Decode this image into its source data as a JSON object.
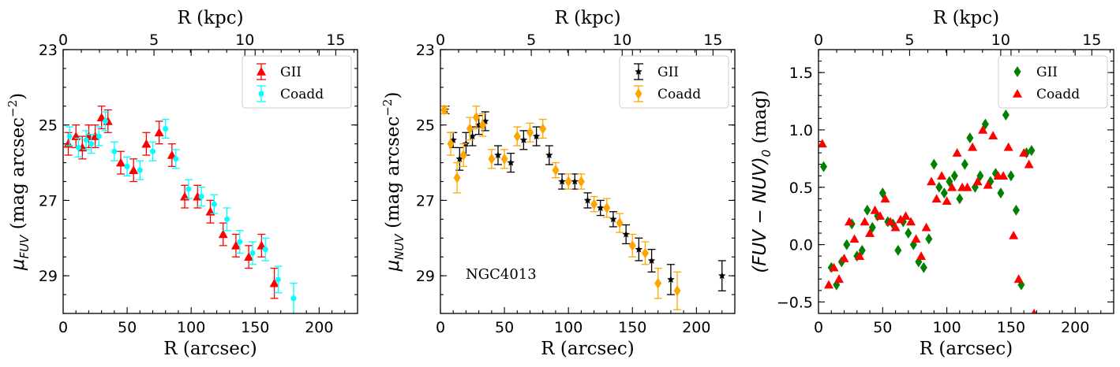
{
  "chart_data": [
    {
      "type": "scatter",
      "panel": "fuv",
      "ylabel_main": "μ",
      "ylabel_sub": "FUV",
      "ylabel_tail": " (mag arcsec",
      "ylabel_sup": "−2",
      "ylabel_close": ")",
      "xlabel": "R (arcsec)",
      "x2label": "R (kpc)",
      "xlim": [
        0,
        230
      ],
      "ylim": [
        30,
        23
      ],
      "x2lim": [
        0,
        16.2
      ],
      "xticks": [
        0,
        50,
        100,
        150,
        200
      ],
      "xtick_labels": [
        "0",
        "50",
        "100",
        "150",
        "200"
      ],
      "x2ticks": [
        0,
        5,
        10,
        15
      ],
      "x2tick_labels": [
        "0",
        "5",
        "10",
        "15"
      ],
      "yticks": [
        23,
        25,
        27,
        29
      ],
      "ytick_labels": [
        "23",
        "25",
        "27",
        "29"
      ],
      "legend": {
        "position": "top-right",
        "entries": [
          "GII",
          "Coadd"
        ]
      },
      "annotation": "",
      "series": [
        {
          "name": "GII",
          "color": "#ff0000",
          "marker": "triangle",
          "errorbars": true,
          "x": [
            4,
            10,
            15,
            20,
            25,
            30,
            35,
            45,
            55,
            65,
            75,
            85,
            95,
            105,
            115,
            125,
            135,
            145,
            155,
            165
          ],
          "y": [
            25.5,
            25.3,
            25.6,
            25.3,
            25.3,
            24.8,
            24.9,
            26.0,
            26.2,
            25.5,
            25.2,
            25.8,
            26.9,
            26.9,
            27.3,
            27.9,
            28.2,
            28.5,
            28.2,
            29.2
          ],
          "err": [
            0.3,
            0.3,
            0.3,
            0.3,
            0.3,
            0.3,
            0.3,
            0.3,
            0.3,
            0.3,
            0.3,
            0.3,
            0.3,
            0.3,
            0.3,
            0.3,
            0.3,
            0.3,
            0.3,
            0.4
          ]
        },
        {
          "name": "Coadd",
          "color": "#00ffff",
          "marker": "circle",
          "errorbars": true,
          "x": [
            5,
            12,
            18,
            22,
            28,
            33,
            40,
            50,
            60,
            70,
            80,
            88,
            98,
            108,
            118,
            128,
            138,
            148,
            158,
            168,
            180
          ],
          "y": [
            25.3,
            25.6,
            25.4,
            25.5,
            25.3,
            24.9,
            25.7,
            26.1,
            26.2,
            25.7,
            25.1,
            25.9,
            26.7,
            26.9,
            27.1,
            27.5,
            28.1,
            28.4,
            28.3,
            29.1,
            29.6
          ],
          "err": [
            0.25,
            0.25,
            0.25,
            0.25,
            0.25,
            0.25,
            0.25,
            0.25,
            0.25,
            0.25,
            0.25,
            0.25,
            0.25,
            0.25,
            0.25,
            0.3,
            0.3,
            0.3,
            0.3,
            0.35,
            0.4
          ]
        }
      ]
    },
    {
      "type": "scatter",
      "panel": "nuv",
      "ylabel_main": "μ",
      "ylabel_sub": "NUV",
      "ylabel_tail": " (mag arcsec",
      "ylabel_sup": "−2",
      "ylabel_close": ")",
      "xlabel": "R (arcsec)",
      "x2label": "R (kpc)",
      "xlim": [
        0,
        230
      ],
      "ylim": [
        30,
        23
      ],
      "x2lim": [
        0,
        16.2
      ],
      "xticks": [
        0,
        50,
        100,
        150,
        200
      ],
      "xtick_labels": [
        "0",
        "50",
        "100",
        "150",
        "200"
      ],
      "x2ticks": [
        0,
        5,
        10,
        15
      ],
      "x2tick_labels": [
        "0",
        "5",
        "10",
        "15"
      ],
      "yticks": [
        23,
        25,
        27,
        29
      ],
      "ytick_labels": [
        "23",
        "25",
        "27",
        "29"
      ],
      "legend": {
        "position": "top-right",
        "entries": [
          "GII",
          "Coadd"
        ]
      },
      "annotation": "NGC4013",
      "series": [
        {
          "name": "GII",
          "color": "#000000",
          "marker": "star",
          "errorbars": true,
          "x": [
            4,
            10,
            15,
            20,
            25,
            30,
            35,
            45,
            55,
            65,
            75,
            85,
            95,
            105,
            115,
            125,
            135,
            145,
            155,
            165,
            180,
            220
          ],
          "y": [
            24.6,
            25.4,
            25.9,
            25.5,
            25.3,
            25.0,
            24.9,
            25.8,
            26.0,
            25.4,
            25.3,
            25.8,
            26.5,
            26.5,
            27.0,
            27.2,
            27.5,
            27.9,
            28.3,
            28.6,
            29.1,
            29.0
          ],
          "err": [
            0.1,
            0.2,
            0.3,
            0.3,
            0.25,
            0.25,
            0.25,
            0.25,
            0.25,
            0.25,
            0.25,
            0.25,
            0.2,
            0.2,
            0.2,
            0.2,
            0.2,
            0.25,
            0.3,
            0.3,
            0.4,
            0.4
          ]
        },
        {
          "name": "Coadd",
          "color": "#ffa500",
          "marker": "diamond",
          "errorbars": true,
          "x": [
            3,
            8,
            13,
            18,
            23,
            28,
            33,
            40,
            50,
            60,
            70,
            80,
            90,
            100,
            110,
            120,
            130,
            140,
            150,
            160,
            170,
            185
          ],
          "y": [
            24.6,
            25.5,
            26.4,
            25.8,
            25.1,
            24.8,
            25.0,
            25.9,
            25.9,
            25.3,
            25.2,
            25.1,
            26.2,
            26.5,
            26.5,
            27.1,
            27.2,
            27.6,
            28.2,
            28.4,
            29.2,
            29.4
          ],
          "err": [
            0.1,
            0.3,
            0.4,
            0.3,
            0.3,
            0.3,
            0.3,
            0.25,
            0.25,
            0.25,
            0.25,
            0.25,
            0.2,
            0.2,
            0.2,
            0.2,
            0.25,
            0.25,
            0.3,
            0.3,
            0.4,
            0.5
          ]
        }
      ]
    },
    {
      "type": "scatter",
      "panel": "color",
      "ylabel_main": "(FUV − NUV)",
      "ylabel_sub": "0",
      "ylabel_tail": " (mag)",
      "ylabel_sup": "",
      "ylabel_close": "",
      "xlabel": "R (arcsec)",
      "x2label": "R (kpc)",
      "xlim": [
        0,
        230
      ],
      "ylim": [
        -0.6,
        1.7
      ],
      "x2lim": [
        0,
        16.2
      ],
      "xticks": [
        0,
        50,
        100,
        150,
        200
      ],
      "xtick_labels": [
        "0",
        "50",
        "100",
        "150",
        "200"
      ],
      "x2ticks": [
        0,
        5,
        10,
        15
      ],
      "x2tick_labels": [
        "0",
        "5",
        "10",
        "15"
      ],
      "yticks": [
        -0.5,
        0.0,
        0.5,
        1.0,
        1.5
      ],
      "ytick_labels": [
        "−0.5",
        "0.0",
        "0.5",
        "1.0",
        "1.5"
      ],
      "legend": {
        "position": "top-right",
        "entries": [
          "GII",
          "Coadd"
        ]
      },
      "annotation": "",
      "series": [
        {
          "name": "GII",
          "color": "#008000",
          "marker": "diamond",
          "errorbars": false,
          "x": [
            4,
            10,
            14,
            18,
            22,
            26,
            30,
            34,
            38,
            42,
            46,
            50,
            54,
            58,
            62,
            66,
            70,
            74,
            78,
            82,
            86,
            90,
            94,
            98,
            102,
            106,
            110,
            114,
            118,
            122,
            126,
            130,
            134,
            138,
            142,
            146,
            150,
            154,
            158,
            162,
            166
          ],
          "y": [
            0.68,
            -0.2,
            -0.35,
            -0.15,
            0.0,
            0.18,
            -0.1,
            -0.05,
            0.3,
            0.15,
            0.25,
            0.45,
            0.2,
            0.18,
            -0.05,
            0.2,
            0.1,
            0.0,
            -0.15,
            -0.2,
            0.05,
            0.7,
            0.5,
            0.45,
            0.55,
            0.6,
            0.4,
            0.7,
            0.93,
            0.5,
            0.6,
            1.05,
            0.55,
            0.62,
            0.45,
            1.13,
            0.6,
            0.3,
            -0.35,
            0.8,
            0.82
          ]
        },
        {
          "name": "Coadd",
          "color": "#ff0000",
          "marker": "triangle",
          "errorbars": false,
          "x": [
            3,
            8,
            12,
            16,
            20,
            24,
            28,
            32,
            36,
            40,
            44,
            48,
            52,
            56,
            60,
            64,
            68,
            72,
            76,
            80,
            84,
            88,
            92,
            96,
            100,
            104,
            108,
            112,
            116,
            120,
            124,
            128,
            132,
            136,
            140,
            144,
            148,
            152,
            156,
            160,
            164,
            168
          ],
          "y": [
            0.88,
            -0.35,
            -0.2,
            -0.3,
            -0.12,
            0.2,
            0.05,
            -0.1,
            0.2,
            0.1,
            0.3,
            0.25,
            0.4,
            0.2,
            0.15,
            0.22,
            0.25,
            0.2,
            0.05,
            -0.1,
            0.15,
            0.55,
            0.4,
            0.6,
            0.38,
            0.5,
            0.8,
            0.5,
            0.5,
            0.85,
            0.55,
            1.0,
            0.52,
            0.95,
            0.6,
            0.6,
            0.85,
            0.08,
            -0.3,
            0.8,
            0.7,
            -0.6
          ]
        }
      ]
    }
  ]
}
